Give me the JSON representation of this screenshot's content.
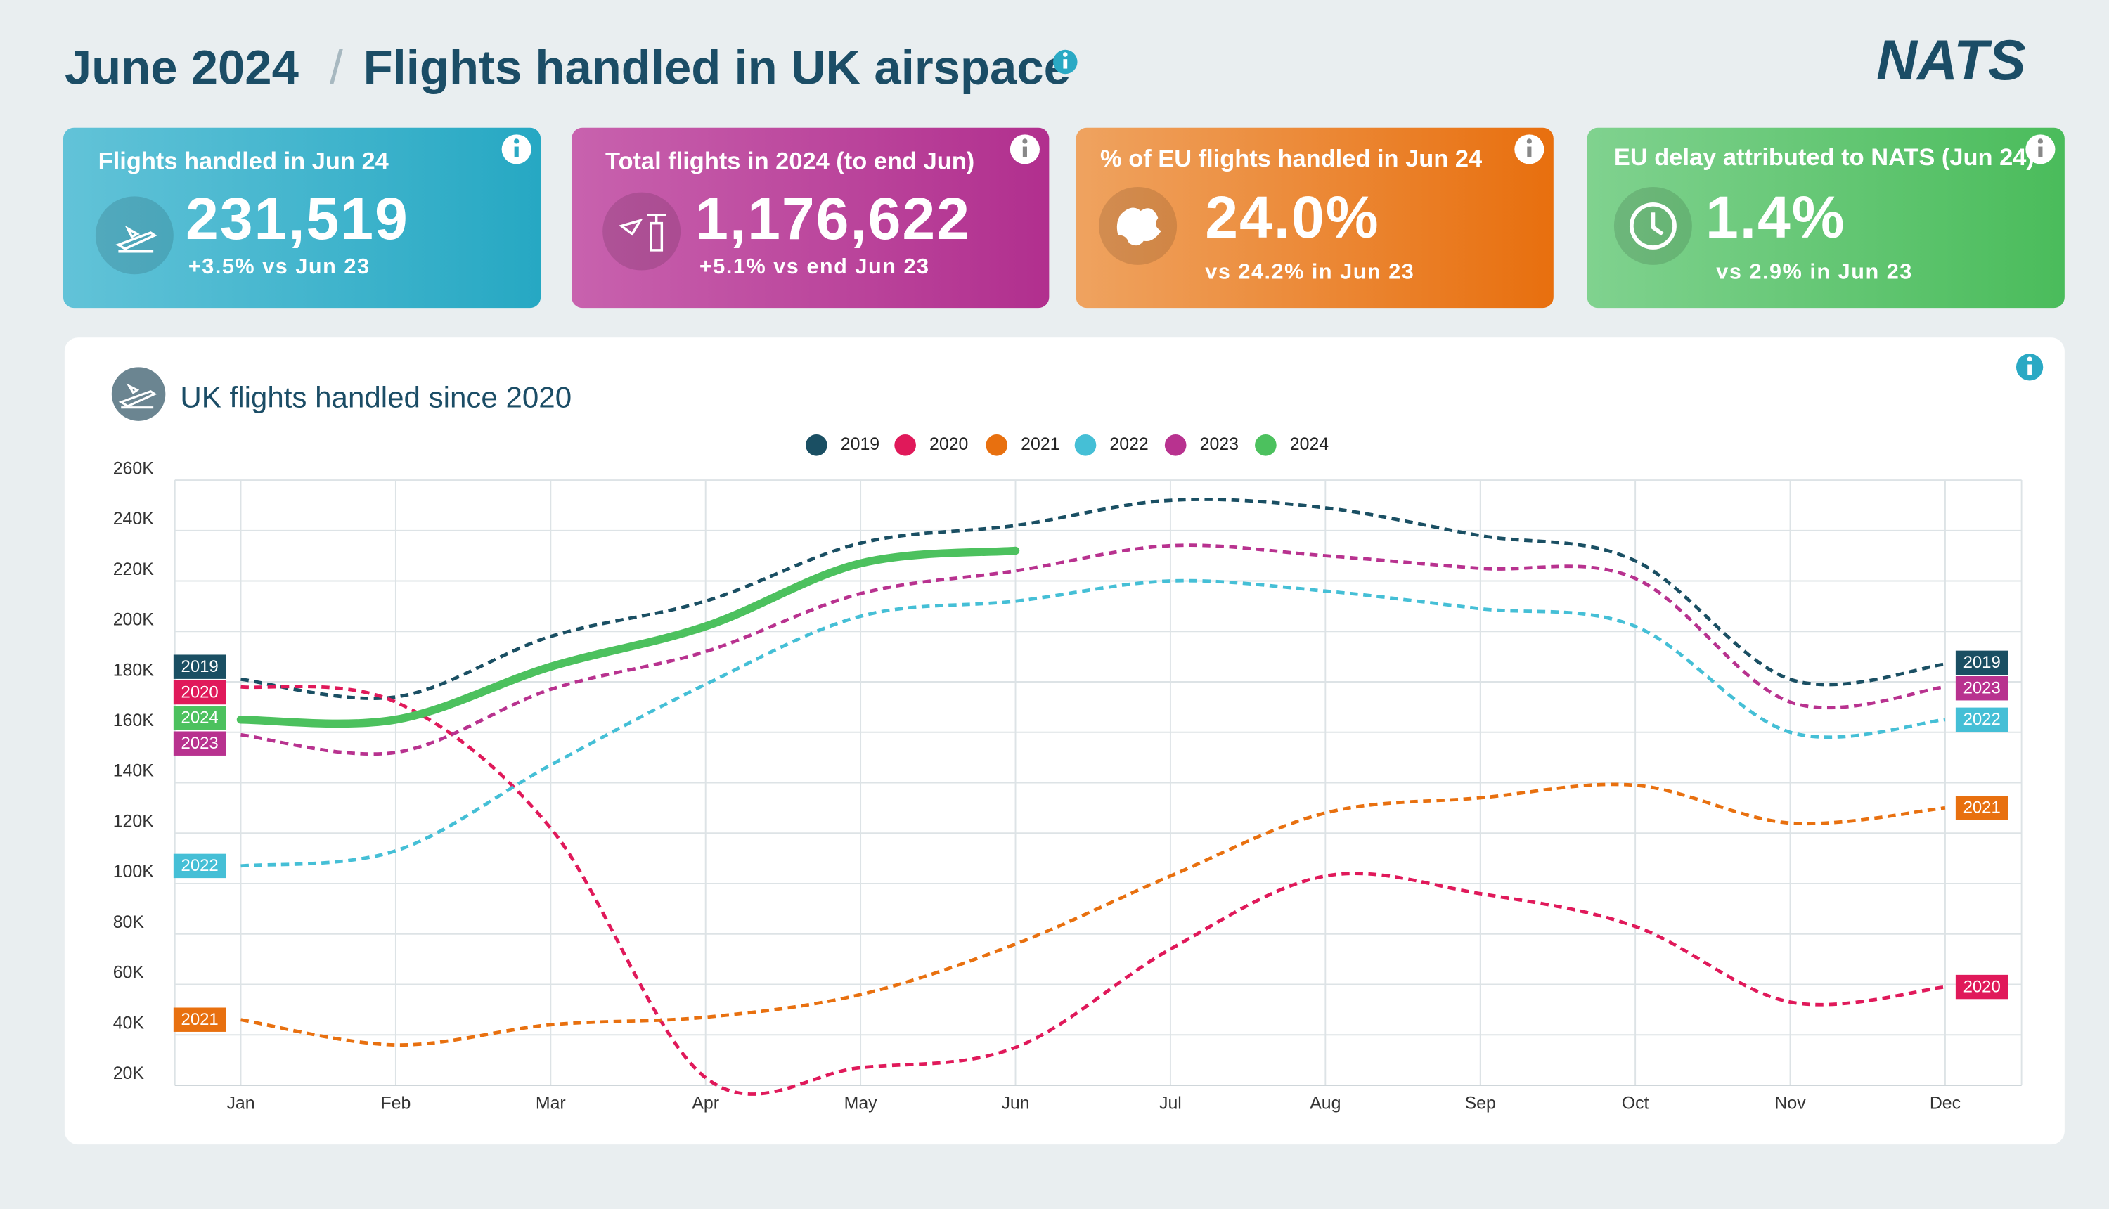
{
  "header": {
    "date": "June 2024",
    "separator": "/",
    "title": "Flights handled in UK airspace",
    "logo": "NATS"
  },
  "kpis": [
    {
      "title": "Flights handled in Jun 24",
      "value": "231,519",
      "note": "+3.5% vs Jun 23"
    },
    {
      "title": "Total flights in 2024 (to end Jun)",
      "value": "1,176,622",
      "note": "+5.1% vs end Jun 23"
    },
    {
      "title": "% of EU flights handled in Jun 24",
      "value": "24.0%",
      "note": "vs 24.2% in Jun 23"
    },
    {
      "title": "EU delay attributed to NATS (Jun 24)",
      "value": "1.4%",
      "note": "vs 2.9% in Jun 23"
    }
  ],
  "chart_data": {
    "type": "line",
    "title": "UK flights handled since 2020",
    "categories": [
      "Jan",
      "Feb",
      "Mar",
      "Apr",
      "May",
      "Jun",
      "Jul",
      "Aug",
      "Sep",
      "Oct",
      "Nov",
      "Dec"
    ],
    "series": [
      {
        "name": "2019",
        "color": "#1a4f63",
        "style": "dashed",
        "values": [
          181000,
          174000,
          198000,
          212000,
          235000,
          242000,
          252000,
          249000,
          238000,
          228000,
          181000,
          187000
        ]
      },
      {
        "name": "2020",
        "color": "#e0195a",
        "style": "dashed",
        "values": [
          178000,
          172000,
          122000,
          23000,
          27000,
          35000,
          74000,
          103000,
          96000,
          83000,
          53000,
          59000
        ]
      },
      {
        "name": "2021",
        "color": "#e8700f",
        "style": "dashed",
        "values": [
          46000,
          36000,
          44000,
          47000,
          56000,
          76000,
          103000,
          128000,
          134000,
          139000,
          124000,
          130000
        ]
      },
      {
        "name": "2022",
        "color": "#45bfd6",
        "style": "dashed",
        "values": [
          107000,
          113000,
          147000,
          179000,
          206000,
          212000,
          220000,
          216000,
          209000,
          202000,
          160000,
          165000
        ]
      },
      {
        "name": "2023",
        "color": "#b8328f",
        "style": "dashed",
        "values": [
          159000,
          152000,
          177000,
          192000,
          215000,
          224000,
          234000,
          230000,
          225000,
          221000,
          172000,
          178000
        ]
      },
      {
        "name": "2024",
        "color": "#4cc15e",
        "style": "solid",
        "values": [
          165000,
          165000,
          186000,
          202000,
          227000,
          232000,
          null,
          null,
          null,
          null,
          null,
          null
        ]
      }
    ],
    "ylim": [
      20000,
      260000
    ],
    "yticks": [
      {
        "value": 20000,
        "label": "20K"
      },
      {
        "value": 40000,
        "label": "40K"
      },
      {
        "value": 60000,
        "label": "60K"
      },
      {
        "value": 80000,
        "label": "80K"
      },
      {
        "value": 100000,
        "label": "100K"
      },
      {
        "value": 120000,
        "label": "120K"
      },
      {
        "value": 140000,
        "label": "140K"
      },
      {
        "value": 160000,
        "label": "160K"
      },
      {
        "value": 180000,
        "label": "180K"
      },
      {
        "value": 200000,
        "label": "200K"
      },
      {
        "value": 220000,
        "label": "220K"
      },
      {
        "value": 240000,
        "label": "240K"
      },
      {
        "value": 260000,
        "label": "260K"
      }
    ],
    "grid": true,
    "legend": "top"
  }
}
